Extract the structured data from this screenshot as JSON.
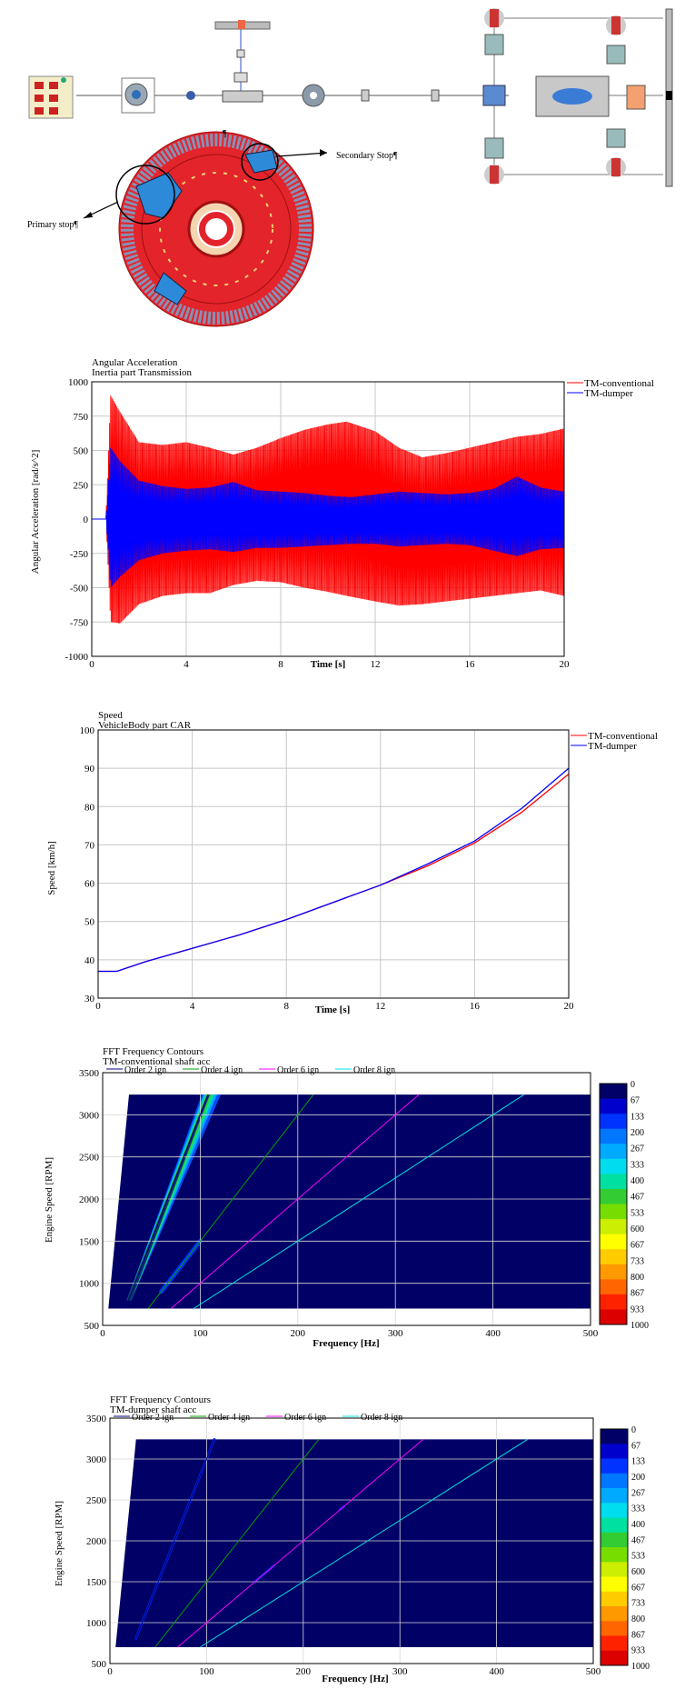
{
  "diagram": {
    "label_primary": "Primary stop¶",
    "label_secondary": "Secondary Stop¶",
    "pilcrow": "¶"
  },
  "chart_data": [
    {
      "type": "line",
      "title": "Angular Acceleration",
      "subtitle": "Inertia part Transmission",
      "xlabel": "Time [s]",
      "ylabel": "Angular Acceleration [rad/s^2]",
      "xlim": [
        0,
        20
      ],
      "ylim": [
        -1000,
        1000
      ],
      "xticks": [
        0,
        4,
        8,
        12,
        16,
        20
      ],
      "yticks": [
        -1000,
        -750,
        -500,
        -250,
        0,
        250,
        500,
        750,
        1000
      ],
      "colors": {
        "TM-conventional": "#ff0000",
        "TM-dumper": "#0000ff"
      },
      "series": [
        {
          "name": "TM-conventional",
          "envelope_t": [
            0,
            0.6,
            0.8,
            1.2,
            2,
            3,
            4,
            5,
            6,
            7,
            8,
            9,
            10,
            10.8,
            12,
            13,
            14,
            15,
            16,
            17,
            18,
            19,
            20
          ],
          "upper": [
            0,
            0,
            900,
            780,
            560,
            540,
            560,
            520,
            470,
            520,
            590,
            650,
            690,
            710,
            640,
            520,
            450,
            480,
            520,
            560,
            600,
            620,
            660
          ],
          "lower": [
            0,
            0,
            -750,
            -760,
            -620,
            -560,
            -540,
            -540,
            -480,
            -450,
            -460,
            -500,
            -530,
            -560,
            -600,
            -630,
            -620,
            -600,
            -580,
            -560,
            -540,
            -520,
            -560
          ]
        },
        {
          "name": "TM-dumper",
          "envelope_t": [
            0,
            0.6,
            0.8,
            1.2,
            2,
            3,
            4,
            5,
            6,
            7,
            8,
            9,
            10,
            11,
            12,
            13,
            14,
            15,
            16,
            17,
            18,
            19,
            20
          ],
          "upper": [
            0,
            0,
            520,
            420,
            280,
            240,
            220,
            230,
            270,
            210,
            200,
            190,
            170,
            160,
            180,
            200,
            190,
            180,
            190,
            220,
            310,
            230,
            200
          ],
          "lower": [
            0,
            0,
            -500,
            -420,
            -300,
            -250,
            -230,
            -220,
            -240,
            -210,
            -210,
            -200,
            -190,
            -180,
            -180,
            -200,
            -190,
            -180,
            -190,
            -230,
            -270,
            -220,
            -210
          ]
        }
      ]
    },
    {
      "type": "line",
      "title": "Speed",
      "subtitle": "VehicleBody part CAR",
      "xlabel": "Time [s]",
      "ylabel": "Speed [km/h]",
      "xlim": [
        0,
        20
      ],
      "ylim": [
        30,
        100
      ],
      "xticks": [
        0,
        4,
        8,
        12,
        16,
        20
      ],
      "yticks": [
        30,
        40,
        50,
        60,
        70,
        80,
        90,
        100
      ],
      "colors": {
        "TM-conventional": "#ff0000",
        "TM-dumper": "#0000ff"
      },
      "series": [
        {
          "name": "TM-conventional",
          "x": [
            0,
            0.8,
            2,
            4,
            6,
            8,
            10,
            12,
            14,
            16,
            18,
            20
          ],
          "y": [
            37,
            37,
            39.5,
            43,
            46.5,
            50.5,
            55,
            59.5,
            64.5,
            70.5,
            78.5,
            88.5
          ]
        },
        {
          "name": "TM-dumper",
          "x": [
            0,
            0.8,
            2,
            4,
            6,
            8,
            10,
            12,
            14,
            16,
            18,
            20
          ],
          "y": [
            37,
            37,
            39.5,
            43,
            46.5,
            50.5,
            55,
            59.5,
            65,
            71,
            79.5,
            90
          ]
        }
      ]
    },
    {
      "type": "heatmap",
      "title": "FFT Frequency Contours",
      "subtitle": "TM-conventional shaft acc",
      "xlabel": "Frequency [Hz]",
      "ylabel": "Engine Speed [RPM]",
      "xlim": [
        0,
        500
      ],
      "ylim": [
        500,
        3500
      ],
      "xticks": [
        0,
        100,
        200,
        300,
        400,
        500
      ],
      "yticks": [
        500,
        1000,
        1500,
        2000,
        2500,
        3000,
        3500
      ],
      "data_region": {
        "rpm_min": 700,
        "rpm_max": 3240,
        "freq_max": 500
      },
      "order_lines": [
        {
          "name": "Order 2 ign",
          "order": 2,
          "color": "#000080"
        },
        {
          "name": "Order 4 ign",
          "order": 4,
          "color": "#00a000"
        },
        {
          "name": "Order 6 ign",
          "order": 6,
          "color": "#ff00ff"
        },
        {
          "name": "Order 8 ign",
          "order": 8,
          "color": "#00e0e0"
        }
      ],
      "colorbar": {
        "ticks": [
          "0",
          "67",
          "133",
          "200",
          "267",
          "333",
          "400",
          "467",
          "533",
          "600",
          "667",
          "733",
          "800",
          "867",
          "933",
          "1000"
        ],
        "colors": [
          "#000066",
          "#0000cc",
          "#0033ff",
          "#0077ff",
          "#00aaff",
          "#00ddee",
          "#00e0a0",
          "#33cc33",
          "#77dd00",
          "#ccee00",
          "#ffff00",
          "#ffcc00",
          "#ff9900",
          "#ff6600",
          "#ff2200",
          "#dd0000"
        ]
      },
      "hotspots": [
        {
          "order": 2,
          "rpm_from": 800,
          "rpm_to": 3240,
          "level": "high"
        },
        {
          "order": 4,
          "rpm_from": 900,
          "rpm_to": 1500,
          "level": "low"
        }
      ]
    },
    {
      "type": "heatmap",
      "title": "FFT Frequency Contours",
      "subtitle": "TM-dumper shaft acc",
      "xlabel": "Frequency [Hz]",
      "ylabel": "Engine Speed [RPM]",
      "xlim": [
        0,
        500
      ],
      "ylim": [
        500,
        3500
      ],
      "xticks": [
        0,
        100,
        200,
        300,
        400,
        500
      ],
      "yticks": [
        500,
        1000,
        1500,
        2000,
        2500,
        3000,
        3500
      ],
      "data_region": {
        "rpm_min": 700,
        "rpm_max": 3240,
        "freq_max": 500
      },
      "order_lines": [
        {
          "name": "Order 2 ign",
          "order": 2,
          "color": "#000080"
        },
        {
          "name": "Order 4 ign",
          "order": 4,
          "color": "#00a000"
        },
        {
          "name": "Order 6 ign",
          "order": 6,
          "color": "#ff00ff"
        },
        {
          "name": "Order 8 ign",
          "order": 8,
          "color": "#00e0e0"
        }
      ],
      "colorbar": {
        "ticks": [
          "0",
          "67",
          "133",
          "200",
          "267",
          "333",
          "400",
          "467",
          "533",
          "600",
          "667",
          "733",
          "800",
          "867",
          "933",
          "1000"
        ],
        "colors": [
          "#000066",
          "#0000cc",
          "#0033ff",
          "#0077ff",
          "#00aaff",
          "#00ddee",
          "#00e0a0",
          "#33cc33",
          "#77dd00",
          "#ccee00",
          "#ffff00",
          "#ffcc00",
          "#ff9900",
          "#ff6600",
          "#ff2200",
          "#dd0000"
        ]
      },
      "hotspots": [
        {
          "order": 2,
          "rpm_from": 800,
          "rpm_to": 3240,
          "level": "faint"
        },
        {
          "order": 6,
          "rpm_from": 1500,
          "rpm_to": 1700,
          "level": "faint"
        },
        {
          "order": 6,
          "rpm_from": 2380,
          "rpm_to": 2420,
          "level": "faint"
        }
      ]
    }
  ]
}
